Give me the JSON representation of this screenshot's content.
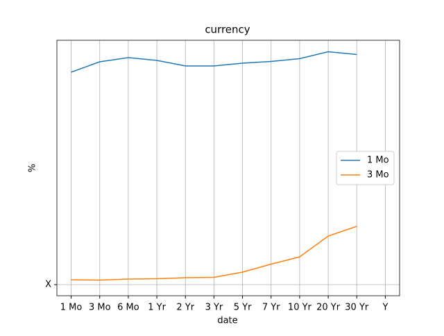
{
  "chart_data": {
    "type": "line",
    "title": "currency",
    "xlabel": "date",
    "ylabel": "%",
    "categories": [
      "1 Mo",
      "3 Mo",
      "6 Mo",
      "1 Yr",
      "2 Yr",
      "3 Yr",
      "5 Yr",
      "7 Yr",
      "10 Yr",
      "20 Yr",
      "30 Yr",
      "Y"
    ],
    "series": [
      {
        "name": "1 Mo",
        "color": "#1f77b4",
        "values": [
          3.06,
          3.21,
          3.27,
          3.23,
          3.15,
          3.15,
          3.19,
          3.215,
          3.255,
          3.355,
          3.315,
          null
        ]
      },
      {
        "name": "3 Mo",
        "color": "#ff7f0e",
        "values": [
          0.07,
          0.065,
          0.08,
          0.085,
          0.1,
          0.105,
          0.18,
          0.295,
          0.4,
          0.7,
          0.84,
          null
        ]
      }
    ],
    "ylim": [
      -0.16,
      3.52
    ],
    "yticks": [
      {
        "value": 0,
        "label": "X"
      }
    ],
    "grid": true,
    "legend": "center right"
  }
}
